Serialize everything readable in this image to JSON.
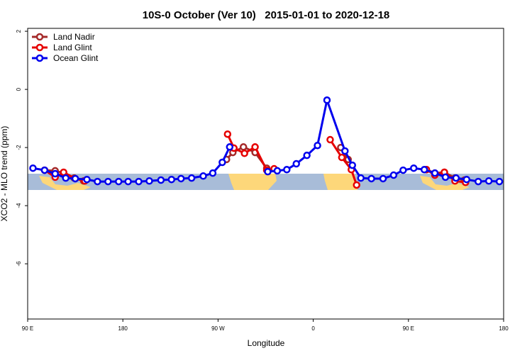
{
  "chart_data": {
    "type": "line",
    "title": "10S-0 October (Ver 10)   2015-01-01 to 2020-12-18",
    "xlabel": "Longitude",
    "ylabel": "XCO2 - MLO trend (ppm)",
    "xlim": [
      90,
      540
    ],
    "ylim": [
      -7.9,
      2.1
    ],
    "xticks": [
      {
        "value": 90,
        "label": "90 E"
      },
      180,
      {
        "value": 270,
        "label": "90 W"
      },
      {
        "value": 360,
        "label": "0"
      },
      {
        "value": 450,
        "label": "90 E"
      },
      180
    ],
    "yticks": [
      2,
      0,
      -2,
      -4,
      -6
    ],
    "legend": "top-left",
    "series": [
      {
        "name": "Land Nadir",
        "color": "#a52a2a",
        "x": [
          106,
          116,
          124,
          134,
          143,
          null,
          278,
          284,
          294,
          305,
          316,
          null,
          386,
          393,
          null,
          467,
          475,
          484,
          494,
          503
        ],
        "values": [
          -2.78,
          -2.8,
          -2.88,
          -3.05,
          -3.15,
          null,
          -2.41,
          -2.17,
          -1.98,
          -2.17,
          -2.71,
          null,
          -2.0,
          -2.41,
          null,
          -2.76,
          -2.88,
          -2.85,
          -3.05,
          -3.12
        ]
      },
      {
        "name": "Land Glint",
        "color": "#e60000",
        "x": [
          106,
          116,
          124,
          135,
          144,
          null,
          279,
          285,
          295,
          305,
          316,
          323,
          null,
          376,
          387,
          396,
          401,
          null,
          467,
          475,
          484,
          494,
          504
        ],
        "values": [
          -2.78,
          -3.02,
          -2.85,
          -3.07,
          -3.15,
          null,
          -1.54,
          -2.02,
          -2.2,
          -1.98,
          -2.78,
          -2.73,
          null,
          -1.73,
          -2.34,
          -2.76,
          -3.29,
          null,
          -2.76,
          -2.95,
          -2.85,
          -3.15,
          -3.2
        ]
      },
      {
        "name": "Ocean Glint",
        "color": "#0000ee",
        "x": [
          95,
          106,
          116,
          126,
          135,
          146,
          156,
          166,
          176,
          185,
          195,
          205,
          216,
          226,
          235,
          245,
          256,
          265,
          274,
          281,
          null,
          317,
          326,
          335,
          344,
          354,
          364,
          373,
          390,
          397,
          405,
          415,
          426,
          436,
          445,
          455,
          465,
          475,
          485,
          495,
          505,
          516,
          526,
          536
        ],
        "values": [
          -2.71,
          -2.78,
          -2.9,
          -3.05,
          -3.07,
          -3.1,
          -3.17,
          -3.17,
          -3.17,
          -3.17,
          -3.17,
          -3.15,
          -3.12,
          -3.1,
          -3.07,
          -3.05,
          -2.98,
          -2.88,
          -2.51,
          -1.98,
          null,
          -2.83,
          -2.8,
          -2.76,
          -2.56,
          -2.27,
          -1.93,
          -0.37,
          -2.12,
          -2.61,
          -3.05,
          -3.07,
          -3.07,
          -2.95,
          -2.78,
          -2.71,
          -2.76,
          -2.88,
          -3.02,
          -3.05,
          -3.1,
          -3.17,
          -3.15,
          -3.17
        ]
      }
    ]
  }
}
